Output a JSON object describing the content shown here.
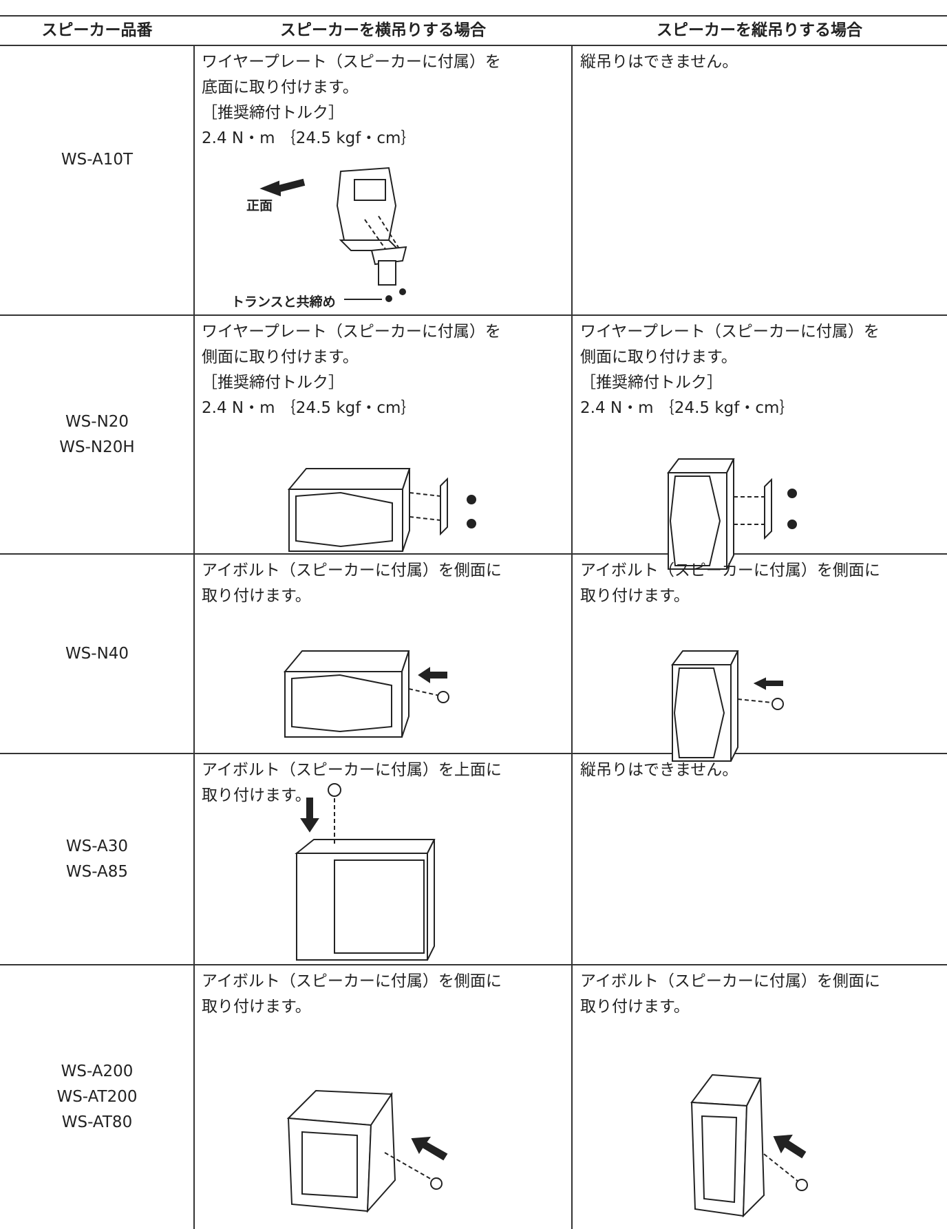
{
  "table": {
    "header": [
      "スピーカー品番",
      "スピーカーを横吊りする場合",
      "スピーカーを縦吊りする場合"
    ],
    "rows": [
      {
        "model": [
          "WS-A10T"
        ],
        "horizontal": [
          "ワイヤープレート（スピーカーに付属）を",
          "底面に取り付けます。",
          "［推奨締付トルク］",
          "2.4 N・m ｛24.5 kgf・cm｝"
        ],
        "vertical": [
          "縦吊りはできません。"
        ],
        "labels": [
          "正面",
          "トランスと共締め"
        ]
      },
      {
        "model": [
          "WS-N20",
          "WS-N20H"
        ],
        "horizontal": [
          "ワイヤープレート（スピーカーに付属）を",
          "側面に取り付けます。",
          "［推奨締付トルク］",
          "2.4 N・m ｛24.5 kgf・cm｝"
        ],
        "vertical": [
          "ワイヤープレート（スピーカーに付属）を",
          "側面に取り付けます。",
          "［推奨締付トルク］",
          "2.4 N・m ｛24.5 kgf・cm｝"
        ]
      },
      {
        "model": [
          "WS-N40"
        ],
        "horizontal": [
          "アイボルト（スピーカーに付属）を側面に",
          "取り付けます。"
        ],
        "vertical": [
          "アイボルト（スピーカーに付属）を側面に",
          "取り付けます。"
        ]
      },
      {
        "model": [
          "WS-A30",
          "WS-A85"
        ],
        "horizontal": [
          "アイボルト（スピーカーに付属）を上面に",
          "取り付けます。"
        ],
        "vertical": [
          "縦吊りはできません。"
        ]
      },
      {
        "model": [
          "WS-A200",
          "WS-AT200",
          "WS-AT80"
        ],
        "horizontal": [
          "アイボルト（スピーカーに付属）を側面に",
          "取り付けます。"
        ],
        "vertical": [
          "アイボルト（スピーカーに付属）を側面に",
          "取り付けます。"
        ]
      }
    ]
  }
}
